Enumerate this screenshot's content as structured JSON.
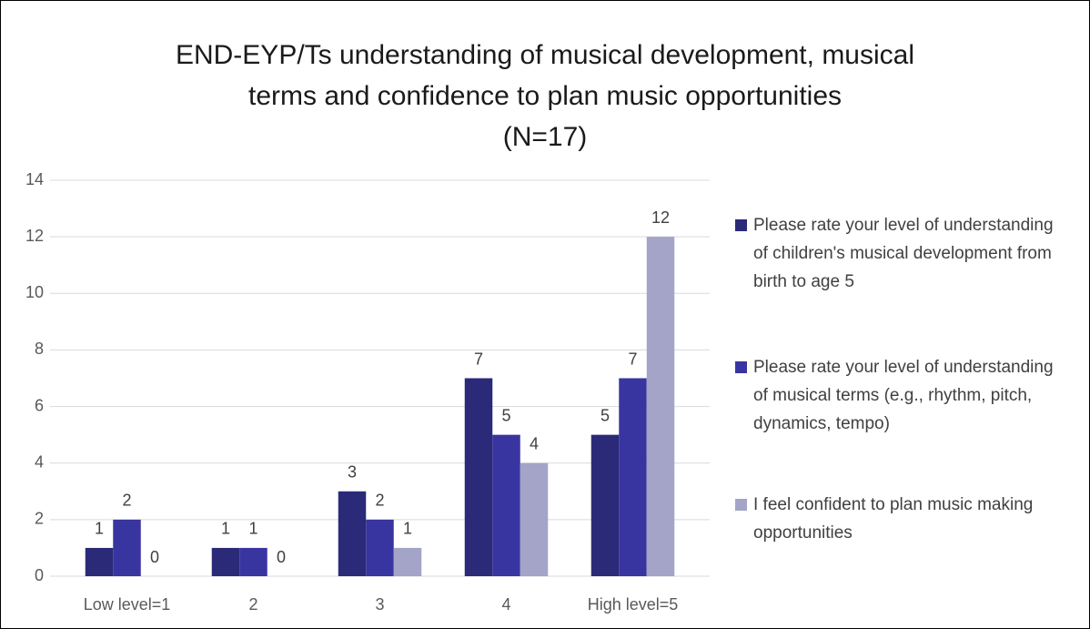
{
  "chart_data": {
    "type": "bar",
    "title": "END-EYP/Ts understanding of musical development, musical\nterms and confidence to plan music opportunities\n(N=17)",
    "categories": [
      "Low level=1",
      "2",
      "3",
      "4",
      "High level=5"
    ],
    "series": [
      {
        "name": "Please rate your level of understanding of children's musical development from birth to age 5",
        "color": "#2b2a78",
        "values": [
          1,
          1,
          3,
          7,
          5
        ]
      },
      {
        "name": "Please rate your level of understanding of musical terms (e.g., rhythm,  pitch, dynamics, tempo)",
        "color": "#3935a0",
        "values": [
          2,
          1,
          2,
          5,
          7
        ]
      },
      {
        "name": "I feel confident to plan music making opportunities",
        "color": "#a4a4c9",
        "values": [
          0,
          0,
          1,
          4,
          12
        ]
      }
    ],
    "ylim": [
      0,
      14
    ],
    "yticks": [
      0,
      2,
      4,
      6,
      8,
      10,
      12,
      14
    ],
    "grid": true,
    "legend": "right"
  }
}
